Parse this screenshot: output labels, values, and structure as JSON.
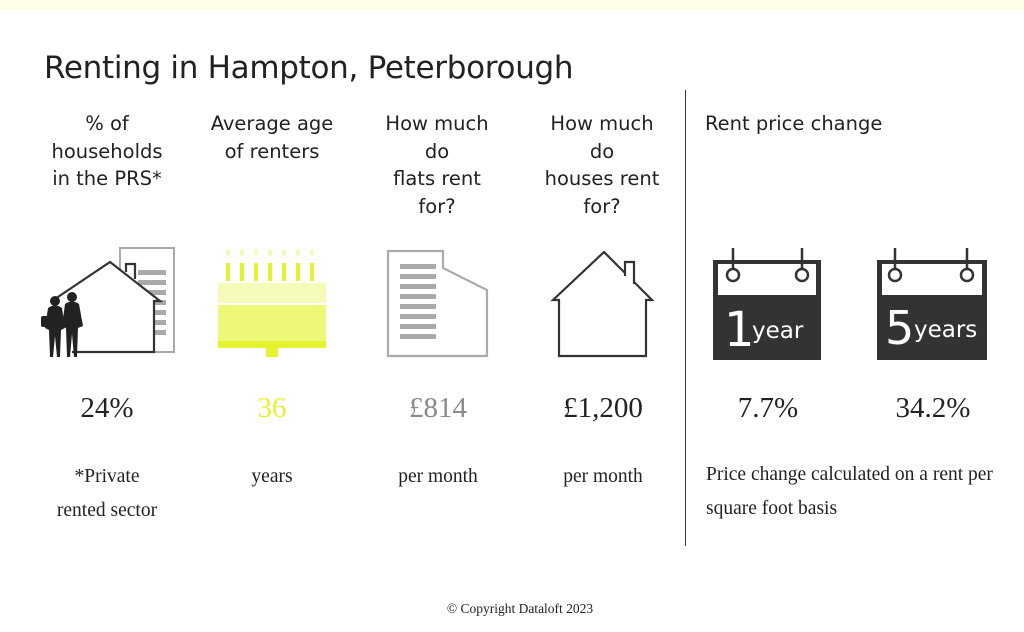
{
  "title": "Renting in Hampton, Peterborough",
  "columns": [
    {
      "heading": "% of\nhouseholds\nin the PRS*",
      "icon": "households-icon",
      "value": "24%",
      "value_color": "#222222",
      "sub": "*Private\nrented sector"
    },
    {
      "heading": "Average age\nof renters",
      "icon": "birthday-cake-icon",
      "value": "36",
      "value_color": "#e5f230",
      "sub": "years"
    },
    {
      "heading": "How much\ndo\nflats rent\nfor?",
      "icon": "flat-building-icon",
      "value": "£814",
      "value_color": "#8a8a8a",
      "sub": "per month"
    },
    {
      "heading": "How much\ndo\nhouses rent\nfor?",
      "icon": "house-icon",
      "value": "£1,200",
      "value_color": "#222222",
      "sub": "per month"
    }
  ],
  "rent_change": {
    "heading": "Rent price change",
    "periods": [
      {
        "number": "1",
        "unit": "year",
        "value": "7.7%"
      },
      {
        "number": "5",
        "unit": "years",
        "value": "34.2%"
      }
    ],
    "note": "Price change calculated on a rent per square foot basis"
  },
  "copyright": "© Copyright Dataloft 2023",
  "colors": {
    "accent": "#e5f230",
    "accent_light": "#f5fab8",
    "calendar": "#333333",
    "grey_icon": "#aaaaaa"
  }
}
